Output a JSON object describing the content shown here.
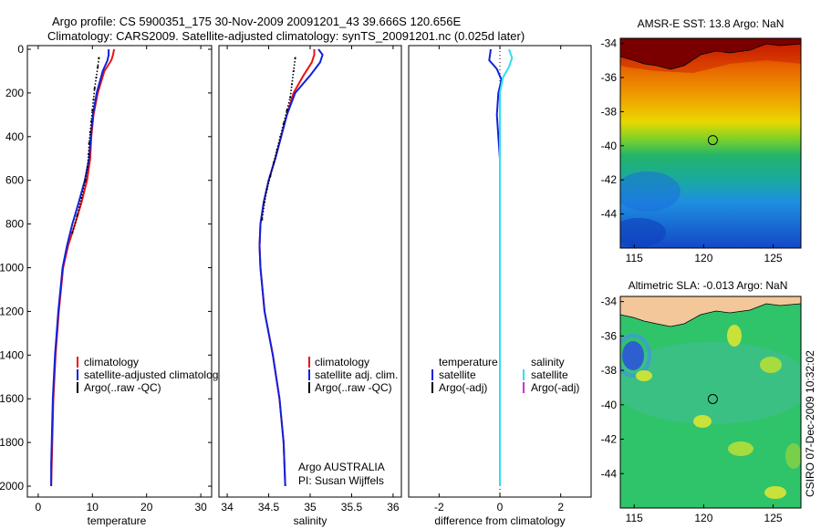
{
  "figure": {
    "title_line1": "Argo profile: CS 5900351_175 30-Nov-2009 20091201_43 39.666S 120.656E",
    "title_line2": "Climatology: CARS2009. Satellite-adjusted climatology: synTS_20091201.nc (0.025d later)",
    "side_label": "CSIRO 07-Dec-2009 10:32:02"
  },
  "colors": {
    "climatology": "#ee1111",
    "satellite": "#1122dd",
    "argo": "#000000",
    "salinity_satellite": "#33ddee",
    "salinity_argo": "#cc33cc",
    "land": "#f3c79a"
  },
  "chart_data": [
    {
      "id": "temperature",
      "type": "line",
      "xlabel": "temperature",
      "ylabel": "",
      "xlim": [
        -2,
        32
      ],
      "ylim": [
        2050,
        0
      ],
      "xticks": [
        0,
        10,
        20,
        30
      ],
      "xtick_labels": [
        "0",
        "10",
        "20",
        "30"
      ],
      "yticks": [
        0,
        200,
        400,
        600,
        800,
        1000,
        1200,
        1400,
        1600,
        1800,
        2000
      ],
      "ytick_labels": [
        "0",
        "200",
        "400",
        "600",
        "800",
        "1000",
        "1200",
        "1400",
        "1600",
        "1800",
        "2000"
      ],
      "legend": [
        "climatology",
        "satellite-adjusted climatology",
        "Argo(..raw -QC)"
      ],
      "annotation": [],
      "series": [
        {
          "name": "climatology",
          "color": "#ee1111",
          "style": "line",
          "x": [
            14.0,
            13.8,
            13.5,
            12.2,
            11.0,
            10.2,
            9.8,
            9.6,
            9.0,
            8.0,
            6.8,
            5.5,
            4.6,
            3.8,
            3.2,
            2.8,
            2.6,
            2.5,
            2.4
          ],
          "y": [
            0,
            25,
            50,
            100,
            200,
            300,
            400,
            500,
            600,
            700,
            800,
            900,
            1000,
            1200,
            1400,
            1600,
            1800,
            1900,
            2000
          ]
        },
        {
          "name": "satellite-adjusted climatology",
          "color": "#1122dd",
          "style": "line",
          "x": [
            13.0,
            13.0,
            12.8,
            11.9,
            10.8,
            10.1,
            9.7,
            9.4,
            8.6,
            7.5,
            6.3,
            5.3,
            4.5,
            3.7,
            3.1,
            2.7,
            2.5,
            2.4,
            2.4
          ],
          "y": [
            0,
            25,
            50,
            100,
            200,
            300,
            400,
            500,
            600,
            700,
            800,
            900,
            1000,
            1200,
            1400,
            1600,
            1800,
            1900,
            2000
          ]
        },
        {
          "name": "Argo(..raw -QC)",
          "color": "#000000",
          "style": "dots",
          "x": [
            11.2,
            11.0,
            10.7,
            10.4,
            10.2,
            10.0,
            9.8,
            9.6,
            9.4,
            9.3,
            9.1,
            8.7,
            8.0,
            7.2,
            6.3
          ],
          "y": [
            40,
            80,
            130,
            180,
            230,
            280,
            330,
            380,
            430,
            480,
            540,
            600,
            680,
            760,
            840
          ]
        }
      ]
    },
    {
      "id": "salinity",
      "type": "line",
      "xlabel": "salinity",
      "ylabel": "",
      "xlim": [
        33.9,
        36.1
      ],
      "ylim": [
        2050,
        0
      ],
      "xticks": [
        34,
        34.5,
        35,
        35.5,
        36
      ],
      "xtick_labels": [
        "34",
        "34.5",
        "35",
        "35.5",
        "36"
      ],
      "yticks": [],
      "ytick_labels": [],
      "legend": [
        "climatology",
        "satellite adj. clim.",
        "Argo(..raw -QC)"
      ],
      "annotation": [
        "Argo AUSTRALIA",
        "PI: Susan Wijffels"
      ],
      "series": [
        {
          "name": "climatology",
          "color": "#ee1111",
          "style": "line",
          "x": [
            35.05,
            35.05,
            35.02,
            34.92,
            34.8,
            34.72,
            34.65,
            34.58,
            34.5,
            34.44,
            34.4,
            34.39,
            34.4,
            34.45,
            34.55,
            34.63,
            34.68,
            34.7
          ],
          "y": [
            0,
            25,
            60,
            120,
            200,
            300,
            400,
            500,
            600,
            700,
            800,
            900,
            1000,
            1200,
            1400,
            1600,
            1800,
            2000
          ]
        },
        {
          "name": "satellite adj. clim.",
          "color": "#1122dd",
          "style": "line",
          "x": [
            35.1,
            35.15,
            35.12,
            35.0,
            34.82,
            34.72,
            34.65,
            34.58,
            34.5,
            34.44,
            34.4,
            34.39,
            34.4,
            34.45,
            34.55,
            34.63,
            34.68,
            34.7
          ],
          "y": [
            0,
            25,
            60,
            120,
            200,
            300,
            400,
            500,
            600,
            700,
            800,
            900,
            1000,
            1200,
            1400,
            1600,
            1800,
            2000
          ]
        },
        {
          "name": "Argo(..raw -QC)",
          "color": "#000000",
          "style": "dots",
          "x": [
            34.82,
            34.8,
            34.78,
            34.76,
            34.72,
            34.68,
            34.64,
            34.6,
            34.56,
            34.52,
            34.48,
            34.45,
            34.42
          ],
          "y": [
            40,
            100,
            160,
            220,
            280,
            340,
            400,
            460,
            520,
            580,
            640,
            700,
            780
          ]
        }
      ]
    },
    {
      "id": "difference",
      "type": "line",
      "xlabel": "difference from climatology",
      "ylabel": "",
      "xlim": [
        -3,
        3
      ],
      "ylim": [
        2050,
        0
      ],
      "xticks": [
        -2,
        0,
        2
      ],
      "xtick_labels": [
        "-2",
        "0",
        "2"
      ],
      "yticks": [],
      "ytick_labels": [],
      "legend_temperature_title": "temperature",
      "legend_salinity_title": "salinity",
      "legend_temperature": [
        "satellite",
        "Argo(-adj)"
      ],
      "legend_salinity": [
        "satellite",
        "Argo(-adj)"
      ],
      "series": [
        {
          "name": "temperature satellite",
          "color": "#1122dd",
          "style": "line",
          "x": [
            -0.3,
            -0.35,
            -0.1,
            0.05,
            -0.05,
            -0.1,
            -0.05,
            0.0,
            0.0,
            0.0,
            0.0,
            0.0,
            0.0,
            0.0,
            0.0
          ],
          "y": [
            0,
            50,
            90,
            140,
            200,
            300,
            400,
            500,
            700,
            900,
            1100,
            1300,
            1500,
            1700,
            2000
          ]
        },
        {
          "name": "salinity satellite",
          "color": "#33ddee",
          "style": "line",
          "x": [
            0.3,
            0.4,
            0.3,
            0.1,
            0.0,
            0.0,
            0.0,
            0.0,
            0.0,
            0.0,
            0.0,
            0.0,
            0.0,
            0.0
          ],
          "y": [
            0,
            40,
            80,
            130,
            200,
            300,
            400,
            600,
            800,
            1000,
            1200,
            1500,
            1700,
            2000
          ]
        }
      ]
    },
    {
      "id": "sst_map",
      "type": "heatmap",
      "title": "AMSR-E SST: 13.8 Argo: NaN",
      "xticks": [
        115,
        120,
        125
      ],
      "xtick_labels": [
        "115",
        "120",
        "125"
      ],
      "yticks": [
        -34,
        -36,
        -38,
        -40,
        -42,
        -44
      ],
      "ytick_labels": [
        "-34",
        "-36",
        "-38",
        "-40",
        "-42",
        "-44"
      ],
      "xlim": [
        114,
        127
      ],
      "ylim": [
        -46,
        -33.7
      ],
      "marker": {
        "lon": 120.656,
        "lat": -39.666
      }
    },
    {
      "id": "sla_map",
      "type": "heatmap",
      "title": "Altimetric SLA: -0.013 Argo: NaN",
      "xticks": [
        115,
        120,
        125
      ],
      "xtick_labels": [
        "115",
        "120",
        "125"
      ],
      "yticks": [
        -34,
        -36,
        -38,
        -40,
        -42,
        -44
      ],
      "ytick_labels": [
        "-34",
        "-36",
        "-38",
        "-40",
        "-42",
        "-44"
      ],
      "xlim": [
        114,
        127
      ],
      "ylim": [
        -46,
        -33.7
      ],
      "marker": {
        "lon": 120.656,
        "lat": -39.666
      }
    }
  ]
}
